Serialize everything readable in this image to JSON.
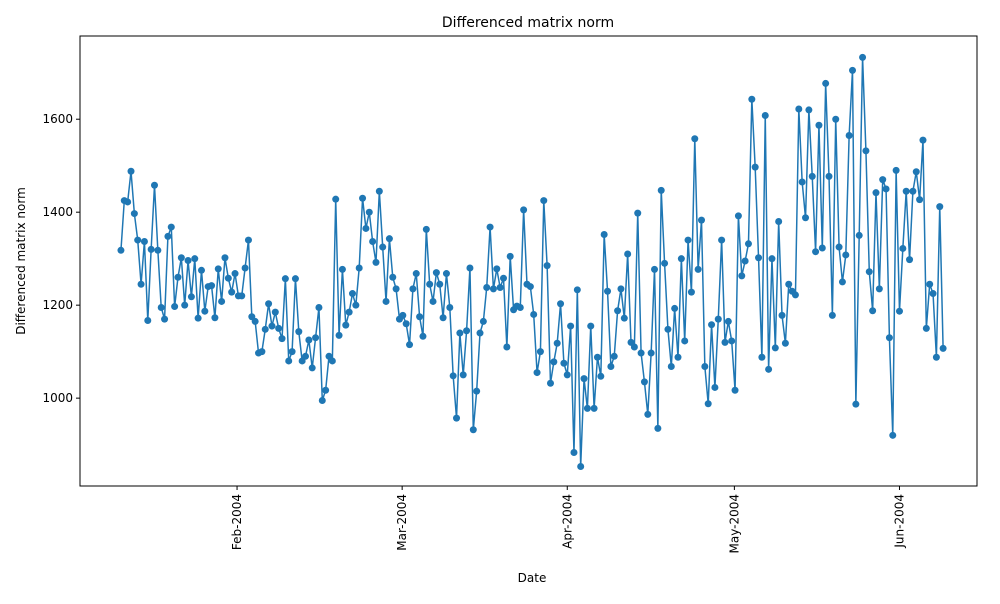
{
  "chart_data": {
    "type": "line",
    "title": "Differenced matrix norm",
    "x_label": "Date",
    "y_label": "Differenced matrix norm",
    "color": "#1f77b4",
    "x": [
      0,
      1,
      2,
      3,
      4,
      5,
      6,
      7,
      8,
      9,
      10,
      11,
      12,
      13,
      14,
      15,
      16,
      17,
      18,
      19,
      20,
      21,
      22,
      23,
      24,
      25,
      26,
      27,
      28,
      29,
      30,
      31,
      32,
      33,
      34,
      35,
      36,
      37,
      38,
      39,
      40,
      41,
      42,
      43,
      44,
      45,
      46,
      47,
      48,
      49,
      50,
      51,
      52,
      53,
      54,
      55,
      56,
      57,
      58,
      59,
      60,
      61,
      62,
      63,
      64,
      65,
      66,
      67,
      68,
      69,
      70,
      71,
      72,
      73,
      74,
      75,
      76,
      77,
      78,
      79,
      80,
      81,
      82,
      83,
      84,
      85,
      86,
      87,
      88,
      89,
      90,
      91,
      92,
      93,
      94,
      95,
      96,
      97,
      98,
      99,
      100,
      101,
      102,
      103,
      104,
      105,
      106,
      107,
      108,
      109,
      110,
      111,
      112,
      113,
      114,
      115,
      116,
      117,
      118,
      119,
      120,
      121,
      122,
      123,
      124,
      125,
      126,
      127,
      128,
      129,
      130,
      131,
      132,
      133,
      134,
      135,
      136,
      137,
      138,
      139,
      140,
      141,
      142,
      143,
      144,
      145,
      146,
      147,
      148,
      149,
      150,
      151,
      152,
      153,
      154,
      155,
      156,
      157,
      158,
      159,
      160,
      161,
      162,
      163,
      164,
      165,
      166,
      167,
      168,
      169,
      170,
      171,
      172,
      173,
      174,
      175,
      176,
      177,
      178,
      179,
      180,
      181,
      182,
      183,
      184,
      185,
      186,
      187,
      188,
      189,
      190,
      191,
      192,
      193,
      194,
      195,
      196,
      197,
      198,
      199,
      200,
      201,
      202,
      203,
      204,
      205,
      206,
      207,
      208,
      209,
      210,
      211,
      212,
      213,
      214,
      215,
      216,
      217,
      218,
      219,
      220,
      221,
      222,
      223,
      224,
      225,
      226,
      227,
      228,
      229,
      230,
      231,
      232,
      233,
      234,
      235,
      236,
      237,
      238,
      239,
      240,
      241,
      242,
      243,
      244,
      245
    ],
    "values": [
      1318,
      1425,
      1422,
      1488,
      1397,
      1340,
      1245,
      1337,
      1167,
      1320,
      1458,
      1318,
      1195,
      1170,
      1348,
      1368,
      1197,
      1260,
      1302,
      1200,
      1296,
      1218,
      1300,
      1172,
      1275,
      1187,
      1240,
      1242,
      1173,
      1278,
      1208,
      1302,
      1258,
      1228,
      1268,
      1220,
      1220,
      1280,
      1340,
      1175,
      1165,
      1097,
      1100,
      1148,
      1203,
      1155,
      1185,
      1150,
      1128,
      1257,
      1080,
      1100,
      1257,
      1143,
      1080,
      1090,
      1125,
      1065,
      1130,
      1195,
      995,
      1017,
      1090,
      1080,
      1428,
      1135,
      1277,
      1157,
      1185,
      1225,
      1200,
      1280,
      1430,
      1365,
      1400,
      1337,
      1292,
      1445,
      1325,
      1208,
      1343,
      1260,
      1235,
      1170,
      1178,
      1160,
      1115,
      1235,
      1268,
      1175,
      1133,
      1363,
      1245,
      1208,
      1270,
      1245,
      1173,
      1268,
      1195,
      1048,
      957,
      1140,
      1050,
      1145,
      1280,
      932,
      1015,
      1140,
      1165,
      1238,
      1368,
      1235,
      1278,
      1238,
      1258,
      1110,
      1305,
      1190,
      1198,
      1195,
      1405,
      1245,
      1240,
      1180,
      1055,
      1100,
      1425,
      1285,
      1032,
      1078,
      1118,
      1203,
      1075,
      1050,
      1155,
      883,
      1233,
      853,
      1042,
      978,
      1155,
      978,
      1088,
      1047,
      1352,
      1230,
      1068,
      1090,
      1188,
      1235,
      1172,
      1310,
      1120,
      1110,
      1398,
      1097,
      1035,
      965,
      1097,
      1277,
      935,
      1447,
      1290,
      1148,
      1068,
      1193,
      1088,
      1300,
      1123,
      1340,
      1228,
      1558,
      1277,
      1383,
      1068,
      988,
      1158,
      1023,
      1170,
      1340,
      1120,
      1165,
      1123,
      1017,
      1392,
      1263,
      1295,
      1332,
      1643,
      1497,
      1302,
      1088,
      1608,
      1062,
      1300,
      1108,
      1380,
      1178,
      1118,
      1245,
      1230,
      1222,
      1622,
      1465,
      1388,
      1620,
      1477,
      1315,
      1587,
      1323,
      1677,
      1477,
      1178,
      1600,
      1325,
      1250,
      1308,
      1565,
      1705,
      987,
      1350,
      1733,
      1532,
      1272,
      1188,
      1442,
      1235,
      1470,
      1450,
      1130,
      920,
      1490,
      1187,
      1322,
      1445,
      1298,
      1445,
      1487,
      1427,
      1555,
      1150,
      1245,
      1225,
      1088,
      1412,
      1107
    ],
    "xlim": [
      -12.2,
      255.1
    ],
    "xticks": [
      {
        "value": 34.6,
        "label": "Feb-2004"
      },
      {
        "value": 83.8,
        "label": "Mar-2004"
      },
      {
        "value": 133.0,
        "label": "Apr-2004"
      },
      {
        "value": 182.8,
        "label": "May-2004"
      },
      {
        "value": 232.0,
        "label": "Jun-2004"
      }
    ],
    "ylim": [
      811,
      1779
    ],
    "yticks": [
      1000,
      1200,
      1400,
      1600
    ],
    "grid": false
  }
}
